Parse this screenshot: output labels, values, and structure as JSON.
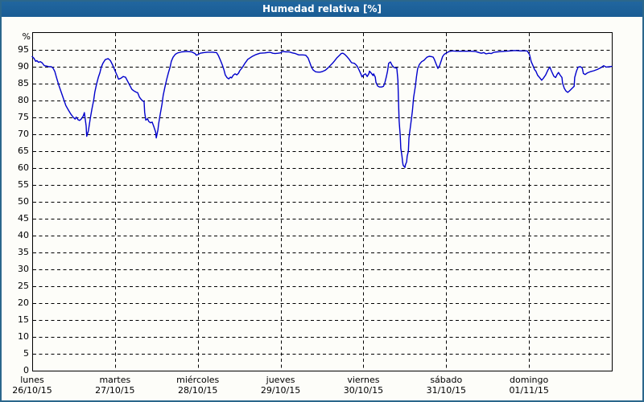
{
  "window": {
    "title": "Humedad relativa [%]"
  },
  "colors": {
    "outer_border": "#2b678c",
    "title_bar_bg": "#1c629c",
    "title_text": "#ffffff",
    "content_bg": "#fdfdf9",
    "plot_bg": "#fefefc",
    "grid": "#000000",
    "axis_frame": "#000000",
    "line": "#0000cc",
    "label_text": "#000000"
  },
  "chart_data": {
    "type": "line",
    "title": "Humedad relativa [%]",
    "unit": "%",
    "grid": "dashed",
    "legend": "none",
    "y_axis": {
      "unit_label": "%",
      "min": 0,
      "max": 100,
      "tick_step": 5,
      "ticks": [
        0,
        5,
        10,
        15,
        20,
        25,
        30,
        35,
        40,
        45,
        50,
        55,
        60,
        65,
        70,
        75,
        80,
        85,
        90,
        95
      ]
    },
    "x_axis": {
      "window_days": 7,
      "days": [
        {
          "name": "lunes",
          "date": "26/10/15"
        },
        {
          "name": "martes",
          "date": "27/10/15"
        },
        {
          "name": "miércoles",
          "date": "28/10/15"
        },
        {
          "name": "jueves",
          "date": "29/10/15"
        },
        {
          "name": "viernes",
          "date": "30/10/15"
        },
        {
          "name": "sábado",
          "date": "31/10/15"
        },
        {
          "name": "domingo",
          "date": "01/11/15"
        }
      ]
    },
    "series": [
      {
        "name": "Humedad relativa",
        "color": "#0000cc",
        "x_format": "fraction_of_7_day_window",
        "points": [
          [
            0.0,
            93.0
          ],
          [
            0.003,
            92.5
          ],
          [
            0.006,
            91.6
          ],
          [
            0.008,
            91.8
          ],
          [
            0.011,
            91.3
          ],
          [
            0.014,
            91.5
          ],
          [
            0.017,
            91.2
          ],
          [
            0.021,
            90.3
          ],
          [
            0.025,
            90.2
          ],
          [
            0.029,
            90.0
          ],
          [
            0.033,
            90.0
          ],
          [
            0.036,
            89.6
          ],
          [
            0.039,
            88.6
          ],
          [
            0.042,
            86.8
          ],
          [
            0.046,
            84.5
          ],
          [
            0.05,
            82.5
          ],
          [
            0.054,
            80.5
          ],
          [
            0.058,
            78.5
          ],
          [
            0.063,
            77.0
          ],
          [
            0.067,
            75.9
          ],
          [
            0.071,
            75.0
          ],
          [
            0.074,
            74.5
          ],
          [
            0.076,
            75.1
          ],
          [
            0.079,
            74.3
          ],
          [
            0.082,
            74.1
          ],
          [
            0.085,
            74.6
          ],
          [
            0.088,
            75.4
          ],
          [
            0.09,
            76.4
          ],
          [
            0.093,
            72.5
          ],
          [
            0.094,
            69.4
          ],
          [
            0.097,
            71.0
          ],
          [
            0.1,
            74.5
          ],
          [
            0.103,
            77.5
          ],
          [
            0.106,
            80.0
          ],
          [
            0.108,
            82.5
          ],
          [
            0.111,
            84.8
          ],
          [
            0.114,
            86.8
          ],
          [
            0.117,
            88.3
          ],
          [
            0.119,
            89.8
          ],
          [
            0.122,
            91.0
          ],
          [
            0.126,
            92.1
          ],
          [
            0.131,
            92.4
          ],
          [
            0.135,
            91.8
          ],
          [
            0.139,
            90.4
          ],
          [
            0.142,
            89.2
          ],
          [
            0.146,
            87.6
          ],
          [
            0.149,
            86.3
          ],
          [
            0.153,
            86.6
          ],
          [
            0.157,
            87.1
          ],
          [
            0.161,
            86.9
          ],
          [
            0.164,
            85.9
          ],
          [
            0.168,
            84.6
          ],
          [
            0.172,
            83.3
          ],
          [
            0.175,
            82.9
          ],
          [
            0.179,
            82.5
          ],
          [
            0.182,
            82.3
          ],
          [
            0.185,
            81.0
          ],
          [
            0.188,
            80.3
          ],
          [
            0.19,
            80.0
          ],
          [
            0.193,
            79.6
          ],
          [
            0.194,
            76.5
          ],
          [
            0.196,
            74.2
          ],
          [
            0.199,
            74.6
          ],
          [
            0.201,
            73.8
          ],
          [
            0.204,
            73.4
          ],
          [
            0.207,
            73.6
          ],
          [
            0.21,
            72.2
          ],
          [
            0.213,
            70.6
          ],
          [
            0.214,
            68.9
          ],
          [
            0.217,
            71.3
          ],
          [
            0.218,
            73.0
          ],
          [
            0.221,
            76.0
          ],
          [
            0.224,
            79.0
          ],
          [
            0.226,
            81.5
          ],
          [
            0.229,
            84.0
          ],
          [
            0.232,
            86.2
          ],
          [
            0.235,
            88.2
          ],
          [
            0.238,
            90.0
          ],
          [
            0.24,
            91.6
          ],
          [
            0.243,
            92.8
          ],
          [
            0.247,
            93.7
          ],
          [
            0.251,
            94.1
          ],
          [
            0.258,
            94.4
          ],
          [
            0.267,
            94.5
          ],
          [
            0.275,
            94.4
          ],
          [
            0.281,
            93.9
          ],
          [
            0.283,
            93.4
          ],
          [
            0.286,
            93.6
          ],
          [
            0.29,
            94.0
          ],
          [
            0.296,
            94.2
          ],
          [
            0.303,
            94.3
          ],
          [
            0.311,
            94.3
          ],
          [
            0.318,
            94.2
          ],
          [
            0.321,
            93.4
          ],
          [
            0.325,
            91.8
          ],
          [
            0.328,
            90.5
          ],
          [
            0.331,
            89.0
          ],
          [
            0.333,
            87.6
          ],
          [
            0.336,
            86.8
          ],
          [
            0.339,
            86.4
          ],
          [
            0.342,
            86.9
          ],
          [
            0.344,
            86.7
          ],
          [
            0.347,
            87.5
          ],
          [
            0.35,
            87.9
          ],
          [
            0.353,
            87.6
          ],
          [
            0.356,
            88.1
          ],
          [
            0.358,
            88.8
          ],
          [
            0.363,
            89.9
          ],
          [
            0.367,
            91.0
          ],
          [
            0.372,
            92.2
          ],
          [
            0.379,
            93.0
          ],
          [
            0.386,
            93.6
          ],
          [
            0.393,
            94.0
          ],
          [
            0.401,
            94.1
          ],
          [
            0.41,
            94.3
          ],
          [
            0.415,
            94.0
          ],
          [
            0.419,
            93.9
          ],
          [
            0.424,
            94.0
          ],
          [
            0.428,
            94.1
          ],
          [
            0.432,
            94.5
          ],
          [
            0.438,
            94.4
          ],
          [
            0.443,
            94.4
          ],
          [
            0.449,
            94.1
          ],
          [
            0.454,
            93.9
          ],
          [
            0.46,
            93.5
          ],
          [
            0.467,
            93.5
          ],
          [
            0.472,
            93.4
          ],
          [
            0.476,
            92.6
          ],
          [
            0.479,
            91.2
          ],
          [
            0.482,
            89.8
          ],
          [
            0.485,
            89.0
          ],
          [
            0.489,
            88.5
          ],
          [
            0.493,
            88.4
          ],
          [
            0.497,
            88.4
          ],
          [
            0.501,
            88.6
          ],
          [
            0.506,
            89.0
          ],
          [
            0.51,
            89.6
          ],
          [
            0.514,
            90.3
          ],
          [
            0.518,
            91.0
          ],
          [
            0.522,
            91.8
          ],
          [
            0.526,
            92.7
          ],
          [
            0.531,
            93.5
          ],
          [
            0.533,
            93.9
          ],
          [
            0.536,
            94.0
          ],
          [
            0.539,
            93.7
          ],
          [
            0.543,
            93.0
          ],
          [
            0.547,
            92.2
          ],
          [
            0.551,
            91.2
          ],
          [
            0.556,
            91.0
          ],
          [
            0.558,
            90.7
          ],
          [
            0.561,
            90.1
          ],
          [
            0.564,
            89.0
          ],
          [
            0.567,
            87.9
          ],
          [
            0.569,
            87.0
          ],
          [
            0.572,
            87.6
          ],
          [
            0.575,
            87.9
          ],
          [
            0.578,
            87.1
          ],
          [
            0.581,
            88.0
          ],
          [
            0.582,
            88.7
          ],
          [
            0.585,
            88.1
          ],
          [
            0.588,
            87.4
          ],
          [
            0.589,
            87.9
          ],
          [
            0.592,
            86.9
          ],
          [
            0.593,
            85.4
          ],
          [
            0.596,
            84.3
          ],
          [
            0.599,
            84.0
          ],
          [
            0.603,
            84.0
          ],
          [
            0.606,
            84.2
          ],
          [
            0.608,
            85.0
          ],
          [
            0.611,
            87.0
          ],
          [
            0.613,
            88.7
          ],
          [
            0.615,
            91.0
          ],
          [
            0.618,
            91.4
          ],
          [
            0.621,
            90.4
          ],
          [
            0.624,
            89.8
          ],
          [
            0.628,
            89.6
          ],
          [
            0.629,
            89.7
          ],
          [
            0.631,
            86.0
          ],
          [
            0.632,
            80.0
          ],
          [
            0.633,
            74.0
          ],
          [
            0.635,
            69.5
          ],
          [
            0.636,
            65.8
          ],
          [
            0.638,
            63.4
          ],
          [
            0.639,
            61.8
          ],
          [
            0.64,
            60.8
          ],
          [
            0.642,
            60.4
          ],
          [
            0.643,
            60.2
          ],
          [
            0.644,
            61.0
          ],
          [
            0.646,
            61.8
          ],
          [
            0.647,
            63.5
          ],
          [
            0.649,
            65.0
          ],
          [
            0.65,
            68.9
          ],
          [
            0.653,
            72.9
          ],
          [
            0.656,
            76.9
          ],
          [
            0.658,
            80.9
          ],
          [
            0.661,
            84.1
          ],
          [
            0.663,
            87.1
          ],
          [
            0.665,
            89.4
          ],
          [
            0.668,
            90.7
          ],
          [
            0.672,
            91.5
          ],
          [
            0.676,
            91.9
          ],
          [
            0.681,
            92.8
          ],
          [
            0.685,
            93.1
          ],
          [
            0.689,
            93.0
          ],
          [
            0.692,
            92.8
          ],
          [
            0.694,
            92.1
          ],
          [
            0.697,
            90.8
          ],
          [
            0.7,
            89.5
          ],
          [
            0.703,
            90.4
          ],
          [
            0.706,
            91.9
          ],
          [
            0.708,
            93.0
          ],
          [
            0.711,
            93.7
          ],
          [
            0.715,
            94.1
          ],
          [
            0.719,
            94.5
          ],
          [
            0.725,
            94.7
          ],
          [
            0.732,
            94.6
          ],
          [
            0.74,
            94.6
          ],
          [
            0.749,
            94.6
          ],
          [
            0.757,
            94.6
          ],
          [
            0.765,
            94.5
          ],
          [
            0.771,
            94.2
          ],
          [
            0.775,
            94.0
          ],
          [
            0.779,
            94.2
          ],
          [
            0.783,
            93.8
          ],
          [
            0.788,
            94.0
          ],
          [
            0.792,
            93.9
          ],
          [
            0.797,
            94.3
          ],
          [
            0.803,
            94.4
          ],
          [
            0.81,
            94.5
          ],
          [
            0.817,
            94.6
          ],
          [
            0.825,
            94.7
          ],
          [
            0.833,
            94.8
          ],
          [
            0.842,
            94.7
          ],
          [
            0.849,
            94.7
          ],
          [
            0.854,
            94.7
          ],
          [
            0.858,
            93.6
          ],
          [
            0.861,
            91.5
          ],
          [
            0.864,
            90.3
          ],
          [
            0.867,
            89.1
          ],
          [
            0.869,
            88.7
          ],
          [
            0.872,
            87.5
          ],
          [
            0.876,
            86.7
          ],
          [
            0.879,
            86.0
          ],
          [
            0.882,
            86.6
          ],
          [
            0.886,
            87.6
          ],
          [
            0.89,
            89.1
          ],
          [
            0.893,
            89.9
          ],
          [
            0.896,
            88.7
          ],
          [
            0.9,
            87.2
          ],
          [
            0.903,
            86.8
          ],
          [
            0.906,
            87.8
          ],
          [
            0.908,
            88.3
          ],
          [
            0.911,
            87.5
          ],
          [
            0.914,
            86.8
          ],
          [
            0.915,
            85.2
          ],
          [
            0.918,
            83.6
          ],
          [
            0.921,
            82.8
          ],
          [
            0.924,
            82.4
          ],
          [
            0.926,
            82.7
          ],
          [
            0.929,
            83.2
          ],
          [
            0.932,
            83.7
          ],
          [
            0.935,
            84.2
          ],
          [
            0.936,
            86.8
          ],
          [
            0.939,
            88.7
          ],
          [
            0.942,
            89.9
          ],
          [
            0.946,
            90.0
          ],
          [
            0.949,
            89.6
          ],
          [
            0.951,
            88.0
          ],
          [
            0.954,
            87.7
          ],
          [
            0.958,
            88.2
          ],
          [
            0.964,
            88.6
          ],
          [
            0.969,
            88.8
          ],
          [
            0.975,
            89.2
          ],
          [
            0.981,
            89.7
          ],
          [
            0.986,
            90.3
          ],
          [
            0.99,
            89.9
          ],
          [
            0.996,
            90.0
          ],
          [
            1.0,
            90.1
          ]
        ]
      }
    ]
  }
}
